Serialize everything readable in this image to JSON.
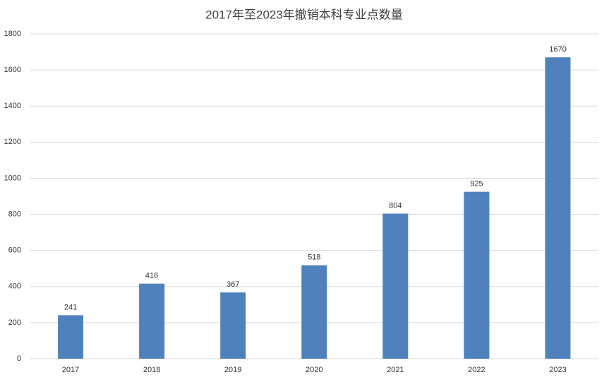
{
  "chart_data": {
    "type": "bar",
    "title": "2017年至2023年撤销本科专业点数量",
    "categories": [
      "2017",
      "2018",
      "2019",
      "2020",
      "2021",
      "2022",
      "2023"
    ],
    "values": [
      241,
      416,
      367,
      518,
      804,
      925,
      1670
    ],
    "color": "#4f81bd",
    "ylim": [
      0,
      1800
    ],
    "yticks": [
      0,
      200,
      400,
      600,
      800,
      1000,
      1200,
      1400,
      1600,
      1800
    ],
    "grid": true
  }
}
